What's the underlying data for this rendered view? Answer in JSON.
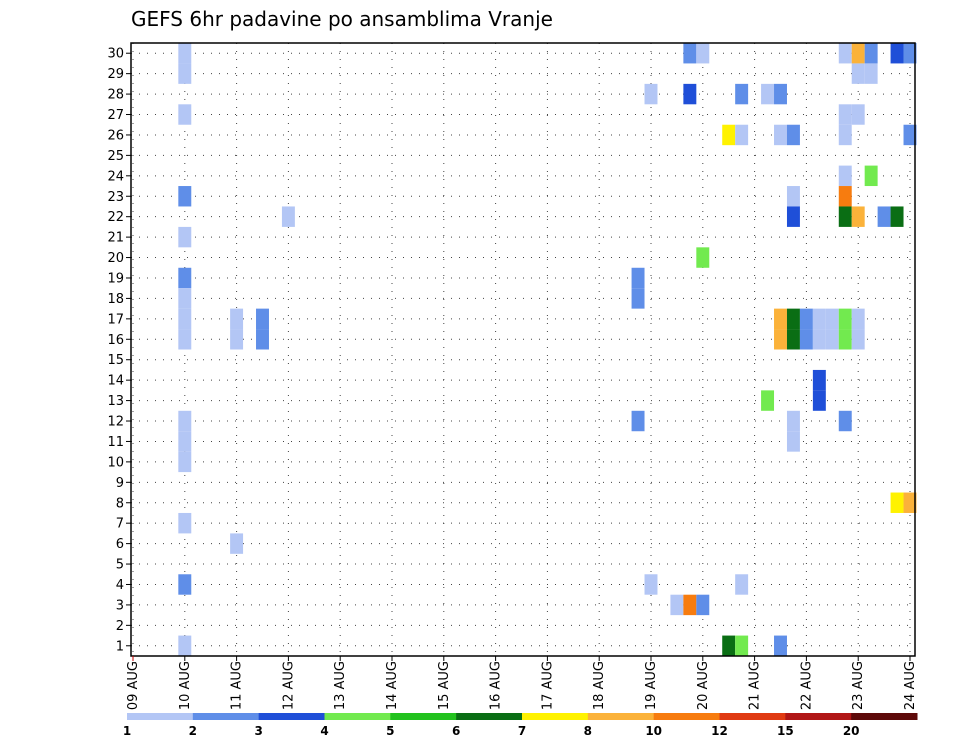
{
  "chart_data": {
    "type": "heatmap",
    "title": "GEFS 6hr padavine po ansamblima Vranje",
    "y_ticks": [
      "1",
      "2",
      "3",
      "4",
      "5",
      "6",
      "7",
      "8",
      "9",
      "10",
      "11",
      "12",
      "13",
      "14",
      "15",
      "16",
      "17",
      "18",
      "19",
      "20",
      "21",
      "22",
      "23",
      "24",
      "25",
      "26",
      "27",
      "28",
      "29",
      "30"
    ],
    "x_ticks": [
      "09 AUG",
      "10 AUG",
      "11 AUG",
      "12 AUG",
      "13 AUG",
      "14 AUG",
      "15 AUG",
      "16 AUG",
      "17 AUG",
      "18 AUG",
      "19 AUG",
      "20 AUG",
      "21 AUG",
      "22 AUG",
      "23 AUG",
      "24 AUG"
    ],
    "x_range_days": [
      0,
      15
    ],
    "y_range": [
      0,
      30
    ],
    "grid": true,
    "colorbar": {
      "levels": [
        "1",
        "2",
        "3",
        "4",
        "5",
        "6",
        "7",
        "8",
        "10",
        "12",
        "15",
        "20"
      ],
      "colors": [
        "#b3c6f5",
        "#5f8ee8",
        "#1f4fd8",
        "#72ea4f",
        "#22c21e",
        "#0a6e14",
        "#fff200",
        "#fbb23a",
        "#f77c0f",
        "#e03a12",
        "#b11616",
        "#5e0a0a"
      ]
    },
    "cells": [
      {
        "m": 30,
        "t": 1.0,
        "v": 1
      },
      {
        "m": 30,
        "t": 10.75,
        "v": 2
      },
      {
        "m": 30,
        "t": 11.0,
        "v": 1
      },
      {
        "m": 30,
        "t": 13.75,
        "v": 1
      },
      {
        "m": 30,
        "t": 14.0,
        "v": 8
      },
      {
        "m": 30,
        "t": 14.25,
        "v": 2
      },
      {
        "m": 30,
        "t": 14.75,
        "v": 3
      },
      {
        "m": 30,
        "t": 15.0,
        "v": 2
      },
      {
        "m": 29,
        "t": 1.0,
        "v": 1
      },
      {
        "m": 29,
        "t": 14.0,
        "v": 1
      },
      {
        "m": 29,
        "t": 14.25,
        "v": 1
      },
      {
        "m": 28,
        "t": 10.0,
        "v": 1
      },
      {
        "m": 28,
        "t": 10.75,
        "v": 3
      },
      {
        "m": 28,
        "t": 11.75,
        "v": 2
      },
      {
        "m": 28,
        "t": 12.25,
        "v": 1
      },
      {
        "m": 28,
        "t": 12.5,
        "v": 2
      },
      {
        "m": 27,
        "t": 1.0,
        "v": 1
      },
      {
        "m": 27,
        "t": 13.75,
        "v": 1
      },
      {
        "m": 27,
        "t": 14.0,
        "v": 1
      },
      {
        "m": 26,
        "t": 11.5,
        "v": 7
      },
      {
        "m": 26,
        "t": 11.75,
        "v": 1
      },
      {
        "m": 26,
        "t": 12.5,
        "v": 1
      },
      {
        "m": 26,
        "t": 12.75,
        "v": 2
      },
      {
        "m": 26,
        "t": 13.75,
        "v": 1
      },
      {
        "m": 26,
        "t": 15.0,
        "v": 2
      },
      {
        "m": 24,
        "t": 13.75,
        "v": 1
      },
      {
        "m": 24,
        "t": 14.25,
        "v": 4
      },
      {
        "m": 23,
        "t": 1.0,
        "v": 2
      },
      {
        "m": 23,
        "t": 12.75,
        "v": 1
      },
      {
        "m": 23,
        "t": 13.75,
        "v": 10
      },
      {
        "m": 22,
        "t": 3.0,
        "v": 1
      },
      {
        "m": 22,
        "t": 12.75,
        "v": 3
      },
      {
        "m": 22,
        "t": 13.75,
        "v": 6
      },
      {
        "m": 22,
        "t": 14.0,
        "v": 8
      },
      {
        "m": 22,
        "t": 14.5,
        "v": 2
      },
      {
        "m": 22,
        "t": 14.75,
        "v": 6
      },
      {
        "m": 21,
        "t": 1.0,
        "v": 1
      },
      {
        "m": 20,
        "t": 11.0,
        "v": 4
      },
      {
        "m": 19,
        "t": 1.0,
        "v": 2
      },
      {
        "m": 19,
        "t": 9.75,
        "v": 2
      },
      {
        "m": 18,
        "t": 1.0,
        "v": 1
      },
      {
        "m": 18,
        "t": 9.75,
        "v": 2
      },
      {
        "m": 17,
        "t": 1.0,
        "v": 1
      },
      {
        "m": 17,
        "t": 2.0,
        "v": 1
      },
      {
        "m": 17,
        "t": 2.5,
        "v": 2
      },
      {
        "m": 17,
        "t": 12.5,
        "v": 8
      },
      {
        "m": 17,
        "t": 12.75,
        "v": 6
      },
      {
        "m": 17,
        "t": 13.0,
        "v": 2
      },
      {
        "m": 17,
        "t": 13.25,
        "v": 1
      },
      {
        "m": 17,
        "t": 13.5,
        "v": 1
      },
      {
        "m": 17,
        "t": 13.75,
        "v": 4
      },
      {
        "m": 17,
        "t": 14.0,
        "v": 1
      },
      {
        "m": 16,
        "t": 1.0,
        "v": 1
      },
      {
        "m": 16,
        "t": 2.0,
        "v": 1
      },
      {
        "m": 16,
        "t": 2.5,
        "v": 2
      },
      {
        "m": 16,
        "t": 12.5,
        "v": 8
      },
      {
        "m": 16,
        "t": 12.75,
        "v": 6
      },
      {
        "m": 16,
        "t": 13.0,
        "v": 2
      },
      {
        "m": 16,
        "t": 13.25,
        "v": 1
      },
      {
        "m": 16,
        "t": 13.5,
        "v": 1
      },
      {
        "m": 16,
        "t": 13.75,
        "v": 4
      },
      {
        "m": 16,
        "t": 14.0,
        "v": 1
      },
      {
        "m": 14,
        "t": 13.25,
        "v": 3
      },
      {
        "m": 13,
        "t": 12.25,
        "v": 4
      },
      {
        "m": 13,
        "t": 13.25,
        "v": 3
      },
      {
        "m": 12,
        "t": 1.0,
        "v": 1
      },
      {
        "m": 12,
        "t": 9.75,
        "v": 2
      },
      {
        "m": 12,
        "t": 12.75,
        "v": 1
      },
      {
        "m": 12,
        "t": 13.75,
        "v": 2
      },
      {
        "m": 11,
        "t": 1.0,
        "v": 1
      },
      {
        "m": 11,
        "t": 12.75,
        "v": 1
      },
      {
        "m": 10,
        "t": 1.0,
        "v": 1
      },
      {
        "m": 8,
        "t": 14.75,
        "v": 7
      },
      {
        "m": 8,
        "t": 15.0,
        "v": 8
      },
      {
        "m": 7,
        "t": 1.0,
        "v": 1
      },
      {
        "m": 6,
        "t": 2.0,
        "v": 1
      },
      {
        "m": 4,
        "t": 1.0,
        "v": 2
      },
      {
        "m": 4,
        "t": 10.0,
        "v": 1
      },
      {
        "m": 4,
        "t": 11.75,
        "v": 1
      },
      {
        "m": 3,
        "t": 10.5,
        "v": 1
      },
      {
        "m": 3,
        "t": 10.75,
        "v": 10
      },
      {
        "m": 3,
        "t": 11.0,
        "v": 2
      },
      {
        "m": 1,
        "t": 1.0,
        "v": 1
      },
      {
        "m": 1,
        "t": 11.5,
        "v": 6
      },
      {
        "m": 1,
        "t": 11.75,
        "v": 4
      },
      {
        "m": 1,
        "t": 12.5,
        "v": 2
      }
    ]
  }
}
